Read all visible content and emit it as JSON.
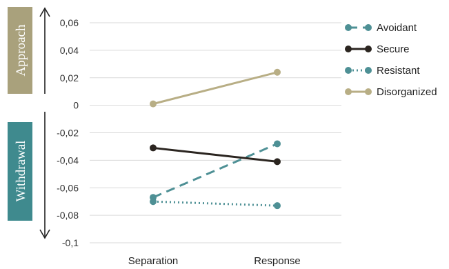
{
  "chart_data": {
    "type": "line",
    "categories": [
      "Separation",
      "Response"
    ],
    "ylim": [
      -0.1,
      0.06
    ],
    "yticks": [
      0.06,
      0.04,
      0.02,
      0,
      -0.02,
      -0.04,
      -0.06,
      -0.08,
      -0.1
    ],
    "ytick_labels": [
      "0,06",
      "0,04",
      "0,02",
      "0",
      "-0,02",
      "-0,04",
      "-0,06",
      "-0,08",
      "-0,1"
    ],
    "grid": true,
    "legend_position": "right",
    "series": [
      {
        "name": "Avoidant",
        "values": [
          -0.067,
          -0.028
        ],
        "color": "#4e9095",
        "dash": "dashed"
      },
      {
        "name": "Secure",
        "values": [
          -0.031,
          -0.041
        ],
        "color": "#2b2520",
        "dash": "solid"
      },
      {
        "name": "Resistant",
        "values": [
          -0.07,
          -0.073
        ],
        "color": "#4e9095",
        "dash": "dotted"
      },
      {
        "name": "Disorganized",
        "values": [
          0.001,
          0.024
        ],
        "color": "#b8ae85",
        "dash": "solid"
      }
    ],
    "side_labels": {
      "approach": "Approach",
      "withdrawal": "Withdrawal"
    },
    "colors": {
      "approach_box": "#a9a17c",
      "withdrawal_box": "#3f8a8e",
      "arrow": "#222222",
      "grid": "#d9d9d9"
    }
  }
}
